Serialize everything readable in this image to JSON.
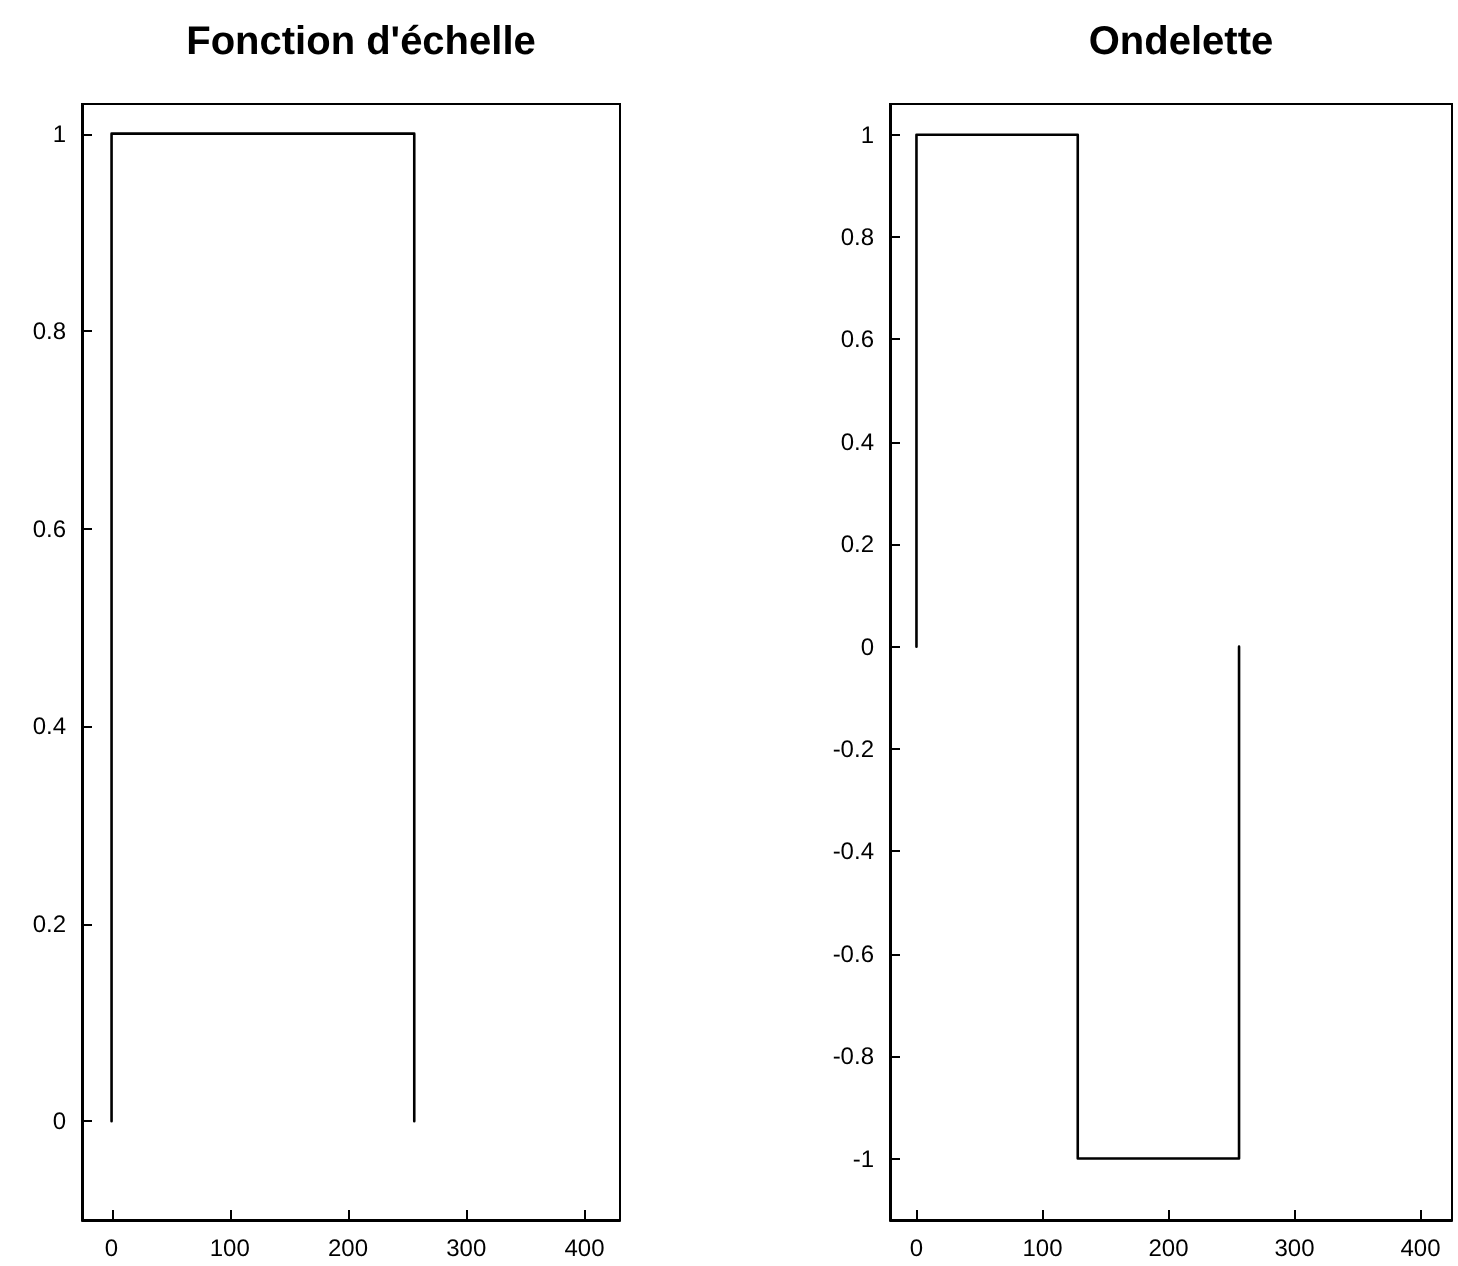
{
  "chart_data": [
    {
      "type": "line",
      "title": "Fonction d'échelle",
      "xlim": [
        -25,
        430
      ],
      "xticks": [
        0,
        100,
        200,
        300,
        400
      ],
      "ylim": [
        -0.1,
        1.03
      ],
      "yticks": [
        0,
        0.2,
        0.4,
        0.6,
        0.8,
        1
      ],
      "grid": false,
      "marker": "none",
      "line_style": "solid",
      "series": [
        {
          "color": "#000000",
          "x": [
            0,
            0,
            256,
            256
          ],
          "values": [
            0,
            1,
            1,
            0
          ]
        }
      ]
    },
    {
      "type": "line",
      "title": "Ondelette",
      "xlim": [
        -21,
        425
      ],
      "xticks": [
        0,
        100,
        200,
        300,
        400
      ],
      "ylim": [
        -1.12,
        1.06
      ],
      "yticks": [
        -1,
        -0.8,
        -0.6,
        -0.4,
        -0.2,
        0,
        0.2,
        0.4,
        0.6,
        0.8,
        1
      ],
      "grid": false,
      "marker": "none",
      "line_style": "solid",
      "series": [
        {
          "color": "#000000",
          "x": [
            0,
            0,
            128,
            128,
            256,
            256
          ],
          "values": [
            0,
            1,
            1,
            -1,
            -1,
            0
          ]
        }
      ]
    }
  ]
}
